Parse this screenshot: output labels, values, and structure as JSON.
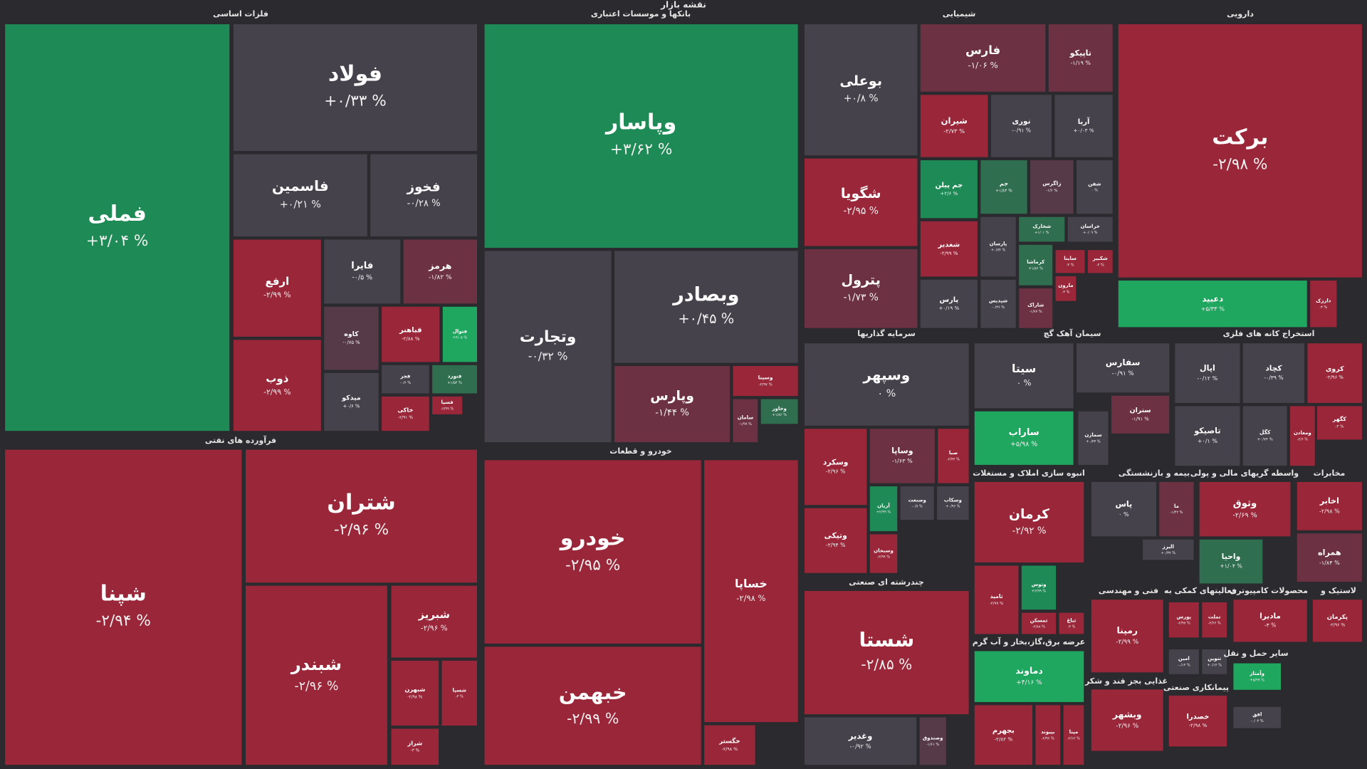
{
  "chart_data": {
    "type": "treemap",
    "title": "نقشه بازار",
    "sectors": [
      {
        "name": "فلزات اساسی",
        "tiles": [
          {
            "name": "فملی",
            "value": 3.04,
            "value_label": "+۳/۰۴ %",
            "color": "#1e8a55"
          },
          {
            "name": "فولاد",
            "value": 0.33,
            "value_label": "+۰/۳۳ %",
            "color": "#46424b"
          },
          {
            "name": "فاسمین",
            "value": 0.21,
            "value_label": "+۰/۲۱ %",
            "color": "#46424b"
          },
          {
            "name": "فخوز",
            "value": -0.28,
            "value_label": "-۰/۲۸ %",
            "color": "#46424b"
          },
          {
            "name": "ارفع",
            "value": -2.99,
            "value_label": "-۲/۹۹ %",
            "color": "#9a2639"
          },
          {
            "name": "ذوب",
            "value": -2.99,
            "value_label": "-۲/۹۹ %",
            "color": "#9a2639"
          },
          {
            "name": "فایرا",
            "value": -0.5,
            "value_label": "-۰/۵ %",
            "color": "#46424b"
          },
          {
            "name": "هرمز",
            "value": -1.82,
            "value_label": "-۱/۸۲ %",
            "color": "#6c3243"
          },
          {
            "name": "کاوه",
            "value": -0.75,
            "value_label": "-۰/۷۵ %",
            "color": "#573a48"
          },
          {
            "name": "فباهنر",
            "value": -2.88,
            "value_label": "-۲/۸۸ %",
            "color": "#9a2639"
          },
          {
            "name": "فتوال",
            "value": 4.05,
            "value_label": "+۴/۰۵ %",
            "color": "#1fa65f"
          },
          {
            "name": "میدکو",
            "value": 0.6,
            "value_label": "+۰/۶ %",
            "color": "#46424b"
          },
          {
            "name": "فجر",
            "value": -0.6,
            "value_label": "-۰/۶ %",
            "color": "#46424b"
          },
          {
            "name": "فنورد",
            "value": 1.54,
            "value_label": "+۱/۵۴ %",
            "color": "#2f6e4f"
          },
          {
            "name": "خاکی",
            "value": -2.91,
            "value_label": "-۲/۹۱ %",
            "color": "#9a2639"
          },
          {
            "name": "فسپا",
            "value": -2.99,
            "value_label": "-۲/۹۹ %",
            "color": "#9a2639"
          }
        ]
      },
      {
        "name": "بانکها و موسسات اعتباری",
        "tiles": [
          {
            "name": "وپاسار",
            "value": 3.62,
            "value_label": "+۳/۶۲ %",
            "color": "#1e8a55"
          },
          {
            "name": "وتجارت",
            "value": -0.32,
            "value_label": "-۰/۳۲ %",
            "color": "#46424b"
          },
          {
            "name": "وبصادر",
            "value": 0.45,
            "value_label": "+۰/۴۵ %",
            "color": "#46424b"
          },
          {
            "name": "وپارس",
            "value": -1.44,
            "value_label": "-۱/۴۴ %",
            "color": "#6c3243"
          },
          {
            "name": "وسینا",
            "value": -2.97,
            "value_label": "-۲/۹۷ %",
            "color": "#9a2639"
          },
          {
            "name": "سامان",
            "value": -1.99,
            "value_label": "-۱/۹۹ %",
            "color": "#6c3243"
          },
          {
            "name": "وخاور",
            "value": 1.86,
            "value_label": "+۱/۸۶ %",
            "color": "#2f6e4f"
          }
        ]
      },
      {
        "name": "شیمیایی",
        "tiles": [
          {
            "name": "بوعلی",
            "value": 0.8,
            "value_label": "+۰/۸ %",
            "color": "#46424b"
          },
          {
            "name": "شگویا",
            "value": -2.95,
            "value_label": "-۲/۹۵ %",
            "color": "#9a2639"
          },
          {
            "name": "پترول",
            "value": -1.73,
            "value_label": "-۱/۷۳ %",
            "color": "#6c3243"
          },
          {
            "name": "فارس",
            "value": -1.06,
            "value_label": "-۱/۰۶ %",
            "color": "#6c3243"
          },
          {
            "name": "تاپیکو",
            "value": -1.19,
            "value_label": "-۱/۱۹ %",
            "color": "#6c3243"
          },
          {
            "name": "شیران",
            "value": -2.73,
            "value_label": "-۲/۷۳ %",
            "color": "#9a2639"
          },
          {
            "name": "نوری",
            "value": -0.91,
            "value_label": "-۰/۹۱ %",
            "color": "#46424b"
          },
          {
            "name": "آریا",
            "value": 0.03,
            "value_label": "+۰/۰۳ %",
            "color": "#46424b"
          },
          {
            "name": "جم پیلن",
            "value": 2.6,
            "value_label": "+۲/۶ %",
            "color": "#1e8a55"
          },
          {
            "name": "جم",
            "value": 1.84,
            "value_label": "+۱/۸۴ %",
            "color": "#2f6e4f"
          },
          {
            "name": "زاگرس",
            "value": -1.6,
            "value_label": "-۱/۶ %",
            "color": "#573a48"
          },
          {
            "name": "شفن",
            "value": 0,
            "value_label": "۰ %",
            "color": "#46424b"
          },
          {
            "name": "شغدیر",
            "value": -2.99,
            "value_label": "-۲/۹۹ %",
            "color": "#9a2639"
          },
          {
            "name": "پارسان",
            "value": 0.74,
            "value_label": "+۰/۷۴ %",
            "color": "#46424b"
          },
          {
            "name": "شخارک",
            "value": 1.01,
            "value_label": "+۱/۰۱ %",
            "color": "#2f6e4f"
          },
          {
            "name": "خراسان",
            "value": 0.09,
            "value_label": "+۰/۰۹ %",
            "color": "#46424b"
          },
          {
            "name": "پارس",
            "value": 0.19,
            "value_label": "+۰/۱۹ %",
            "color": "#46424b"
          },
          {
            "name": "شپدیس",
            "value": -0.36,
            "value_label": "-۰/۳۶ %",
            "color": "#46424b"
          },
          {
            "name": "کرماشا",
            "value": 1.86,
            "value_label": "+۱/۸۶ %",
            "color": "#2f6e4f"
          },
          {
            "name": "شاراک",
            "value": -1.77,
            "value_label": "-۱/۷۷ %",
            "color": "#6c3243"
          },
          {
            "name": "ساینا",
            "value": -3,
            "value_label": "-۳ %",
            "color": "#9a2639"
          },
          {
            "name": "شکبیر",
            "value": -3,
            "value_label": "-۳ %",
            "color": "#9a2639"
          },
          {
            "name": "مارون",
            "value": -3,
            "value_label": "-۳ %",
            "color": "#9a2639"
          }
        ]
      },
      {
        "name": "دارویی",
        "tiles": [
          {
            "name": "برکت",
            "value": -2.98,
            "value_label": "-۲/۹۸ %",
            "color": "#9a2639"
          },
          {
            "name": "دعبید",
            "value": 5.33,
            "value_label": "+۵/۳۳ %",
            "color": "#1fa65f"
          },
          {
            "name": "دارزک",
            "value": -3,
            "value_label": "-۳ %",
            "color": "#9a2639"
          }
        ]
      },
      {
        "name": "فرآورده های نفتی",
        "tiles": [
          {
            "name": "شپنا",
            "value": -2.94,
            "value_label": "-۲/۹۴ %",
            "color": "#9a2639"
          },
          {
            "name": "شتران",
            "value": -2.96,
            "value_label": "-۲/۹۶ %",
            "color": "#9a2639"
          },
          {
            "name": "شبندر",
            "value": -2.96,
            "value_label": "-۲/۹۶ %",
            "color": "#9a2639"
          },
          {
            "name": "شبریز",
            "value": -2.96,
            "value_label": "-۲/۹۶ %",
            "color": "#9a2639"
          },
          {
            "name": "شبهرن",
            "value": -2.98,
            "value_label": "-۲/۹۸ %",
            "color": "#9a2639"
          },
          {
            "name": "شسپا",
            "value": -3,
            "value_label": "-۳ %",
            "color": "#9a2639"
          },
          {
            "name": "شراز",
            "value": -3,
            "value_label": "-۳ %",
            "color": "#9a2639"
          }
        ]
      },
      {
        "name": "خودرو و قطعات",
        "tiles": [
          {
            "name": "خودرو",
            "value": -2.95,
            "value_label": "-۲/۹۵ %",
            "color": "#9a2639"
          },
          {
            "name": "خبهمن",
            "value": -2.99,
            "value_label": "-۲/۹۹ %",
            "color": "#9a2639"
          },
          {
            "name": "خساپا",
            "value": -2.98,
            "value_label": "-۲/۹۸ %",
            "color": "#9a2639"
          },
          {
            "name": "خگستر",
            "value": -2.98,
            "value_label": "-۲/۹۸ %",
            "color": "#9a2639"
          }
        ]
      },
      {
        "name": "سرمایه گذاریها",
        "tiles": [
          {
            "name": "وسپهر",
            "value": 0,
            "value_label": "۰ %",
            "color": "#46424b"
          },
          {
            "name": "وسکرد",
            "value": -2.96,
            "value_label": "-۲/۹۶ %",
            "color": "#9a2639"
          },
          {
            "name": "وتیکی",
            "value": -2.94,
            "value_label": "-۲/۹۴ %",
            "color": "#9a2639"
          },
          {
            "name": "وساپا",
            "value": -1.63,
            "value_label": "-۱/۶۳ %",
            "color": "#6c3243"
          },
          {
            "name": "صبا",
            "value": -2.44,
            "value_label": "-۲/۴۴ %",
            "color": "#9a2639"
          },
          {
            "name": "آریان",
            "value": 2.99,
            "value_label": "+۲/۹۹ %",
            "color": "#1e8a55"
          },
          {
            "name": "وصنعت",
            "value": -0.7,
            "value_label": "-۰/۷ %",
            "color": "#46424b"
          },
          {
            "name": "وسکاب",
            "value": 0.96,
            "value_label": "+۰/۹۶ %",
            "color": "#46424b"
          },
          {
            "name": "وسبحان",
            "value": -2.99,
            "value_label": "-۲/۹۹ %",
            "color": "#9a2639"
          }
        ]
      },
      {
        "name": "چندرشته ای صنعتی",
        "tiles": [
          {
            "name": "شستا",
            "value": -2.85,
            "value_label": "-۲/۸۵ %",
            "color": "#9a2639"
          },
          {
            "name": "وغدیر",
            "value": -0.92,
            "value_label": "-۰/۹۲ %",
            "color": "#46424b"
          },
          {
            "name": "وصندوق",
            "value": -1.61,
            "value_label": "-۱/۶۱ %",
            "color": "#573a48"
          }
        ]
      },
      {
        "name": "سیمان آهک گچ",
        "tiles": [
          {
            "name": "سیتا",
            "value": 0,
            "value_label": "۰ %",
            "color": "#46424b"
          },
          {
            "name": "سفارس",
            "value": -0.91,
            "value_label": "-۰/۹۱ %",
            "color": "#46424b"
          },
          {
            "name": "ساراب",
            "value": 5.98,
            "value_label": "+۵/۹۸ %",
            "color": "#1fa65f"
          },
          {
            "name": "ستران",
            "value": -1.91,
            "value_label": "-۱/۹۱ %",
            "color": "#6c3243"
          },
          {
            "name": "سمازن",
            "value": 0.33,
            "value_label": "+۰/۳۳ %",
            "color": "#46424b"
          }
        ]
      },
      {
        "name": "انبوه سازی املاک و مستغلات",
        "tiles": [
          {
            "name": "کرمان",
            "value": -2.92,
            "value_label": "-۲/۹۲ %",
            "color": "#9a2639"
          },
          {
            "name": "ثامید",
            "value": -2.99,
            "value_label": "-۲/۹۹ %",
            "color": "#9a2639"
          },
          {
            "name": "وتوس",
            "value": 2.99,
            "value_label": "+۲/۹۹ %",
            "color": "#1e8a55"
          },
          {
            "name": "ثمسکن",
            "value": -2.88,
            "value_label": "-۲/۸۸ %",
            "color": "#9a2639"
          },
          {
            "name": "ثباغ",
            "value": -3,
            "value_label": "-۳ %",
            "color": "#9a2639"
          }
        ]
      },
      {
        "name": "عرضه برق،گاز،بخار و آب گرم",
        "tiles": [
          {
            "name": "دماوند",
            "value": 4.16,
            "value_label": "+۴/۱۶ %",
            "color": "#1fa65f"
          },
          {
            "name": "بجهرم",
            "value": -2.82,
            "value_label": "-۲/۸۲ %",
            "color": "#9a2639"
          },
          {
            "name": "بپیوند",
            "value": -2.96,
            "value_label": "-۲/۹۶ %",
            "color": "#9a2639"
          },
          {
            "name": "مپنا",
            "value": -2.12,
            "value_label": "-۲/۱۲ %",
            "color": "#9a2639"
          }
        ]
      },
      {
        "name": "استخراج کانه های فلزی",
        "tiles": [
          {
            "name": "اپال",
            "value": -0.12,
            "value_label": "-۰/۱۲ %",
            "color": "#46424b"
          },
          {
            "name": "کچاد",
            "value": -0.39,
            "value_label": "-۰/۳۹ %",
            "color": "#46424b"
          },
          {
            "name": "کروی",
            "value": -2.96,
            "value_label": "-۲/۹۶ %",
            "color": "#9a2639"
          },
          {
            "name": "کگهر",
            "value": -3,
            "value_label": "-۳ %",
            "color": "#9a2639"
          },
          {
            "name": "تاصیکو",
            "value": 0.1,
            "value_label": "+۰/۱ %",
            "color": "#46424b"
          },
          {
            "name": "کگل",
            "value": 0.74,
            "value_label": "+۰/۷۴ %",
            "color": "#46424b"
          },
          {
            "name": "ومعادن",
            "value": -2.6,
            "value_label": "-۲/۶ %",
            "color": "#9a2639"
          }
        ]
      },
      {
        "name": "بیمه و بازنشستگی",
        "tiles": [
          {
            "name": "پاس",
            "value": 0,
            "value_label": "۰ %",
            "color": "#46424b"
          },
          {
            "name": "ما",
            "value": -1.42,
            "value_label": "-۱/۴۲ %",
            "color": "#6c3243"
          },
          {
            "name": "البرز",
            "value": 0.37,
            "value_label": "+۰/۳۷ %",
            "color": "#46424b"
          }
        ]
      },
      {
        "name": "واسطه گریهای مالی و پولی",
        "tiles": [
          {
            "name": "وثوق",
            "value": -2.69,
            "value_label": "-۲/۶۹ %",
            "color": "#9a2639"
          },
          {
            "name": "واحیا",
            "value": 1.04,
            "value_label": "+۱/۰۴ %",
            "color": "#2f6e4f"
          }
        ]
      },
      {
        "name": "مخابرات",
        "tiles": [
          {
            "name": "اخابر",
            "value": -2.98,
            "value_label": "-۲/۹۸ %",
            "color": "#9a2639"
          },
          {
            "name": "همراه",
            "value": -1.84,
            "value_label": "-۱/۸۴ %",
            "color": "#6c3243"
          }
        ]
      },
      {
        "name": "فنی و مهندسی",
        "tiles": [
          {
            "name": "رمپنا",
            "value": -2.99,
            "value_label": "-۲/۹۹ %",
            "color": "#9a2639"
          }
        ]
      },
      {
        "name": "فعالیتهای کمکی به",
        "tiles": [
          {
            "name": "پورس",
            "value": -2.97,
            "value_label": "-۲/۹۷ %",
            "color": "#9a2639"
          },
          {
            "name": "تملت",
            "value": -2.66,
            "value_label": "-۲/۶۶ %",
            "color": "#9a2639"
          },
          {
            "name": "امین",
            "value": -0.14,
            "value_label": "-۰/۱۴ %",
            "color": "#46424b"
          },
          {
            "name": "تنوین",
            "value": 0.14,
            "value_label": "+۰/۱۴ %",
            "color": "#46424b"
          }
        ]
      },
      {
        "name": "محصولات کامپیوتری",
        "tiles": [
          {
            "name": "مادیرا",
            "value": -3,
            "value_label": "-۳ %",
            "color": "#9a2639"
          }
        ]
      },
      {
        "name": "لاستیک و",
        "tiles": [
          {
            "name": "پکرمان",
            "value": -2.96,
            "value_label": "-۲/۹۶ %",
            "color": "#9a2639"
          }
        ]
      },
      {
        "name": "غذایی بجز قند و شکر",
        "tiles": [
          {
            "name": "وبشهر",
            "value": -2.96,
            "value_label": "-۲/۹۶ %",
            "color": "#9a2639"
          }
        ]
      },
      {
        "name": "پیمانکاری صنعتی",
        "tiles": [
          {
            "name": "خصدرا",
            "value": -2.98,
            "value_label": "-۲/۹۸ %",
            "color": "#9a2639"
          }
        ]
      },
      {
        "name": "سایر حمل و نقل",
        "tiles": [
          {
            "name": "وآمتاز",
            "value": 5.99,
            "value_label": "+۵/۹۹ %",
            "color": "#1fa65f"
          },
          {
            "name": "افق",
            "value": -0.03,
            "value_label": "-۰/۰۳ %",
            "color": "#46424b"
          }
        ]
      }
    ]
  }
}
